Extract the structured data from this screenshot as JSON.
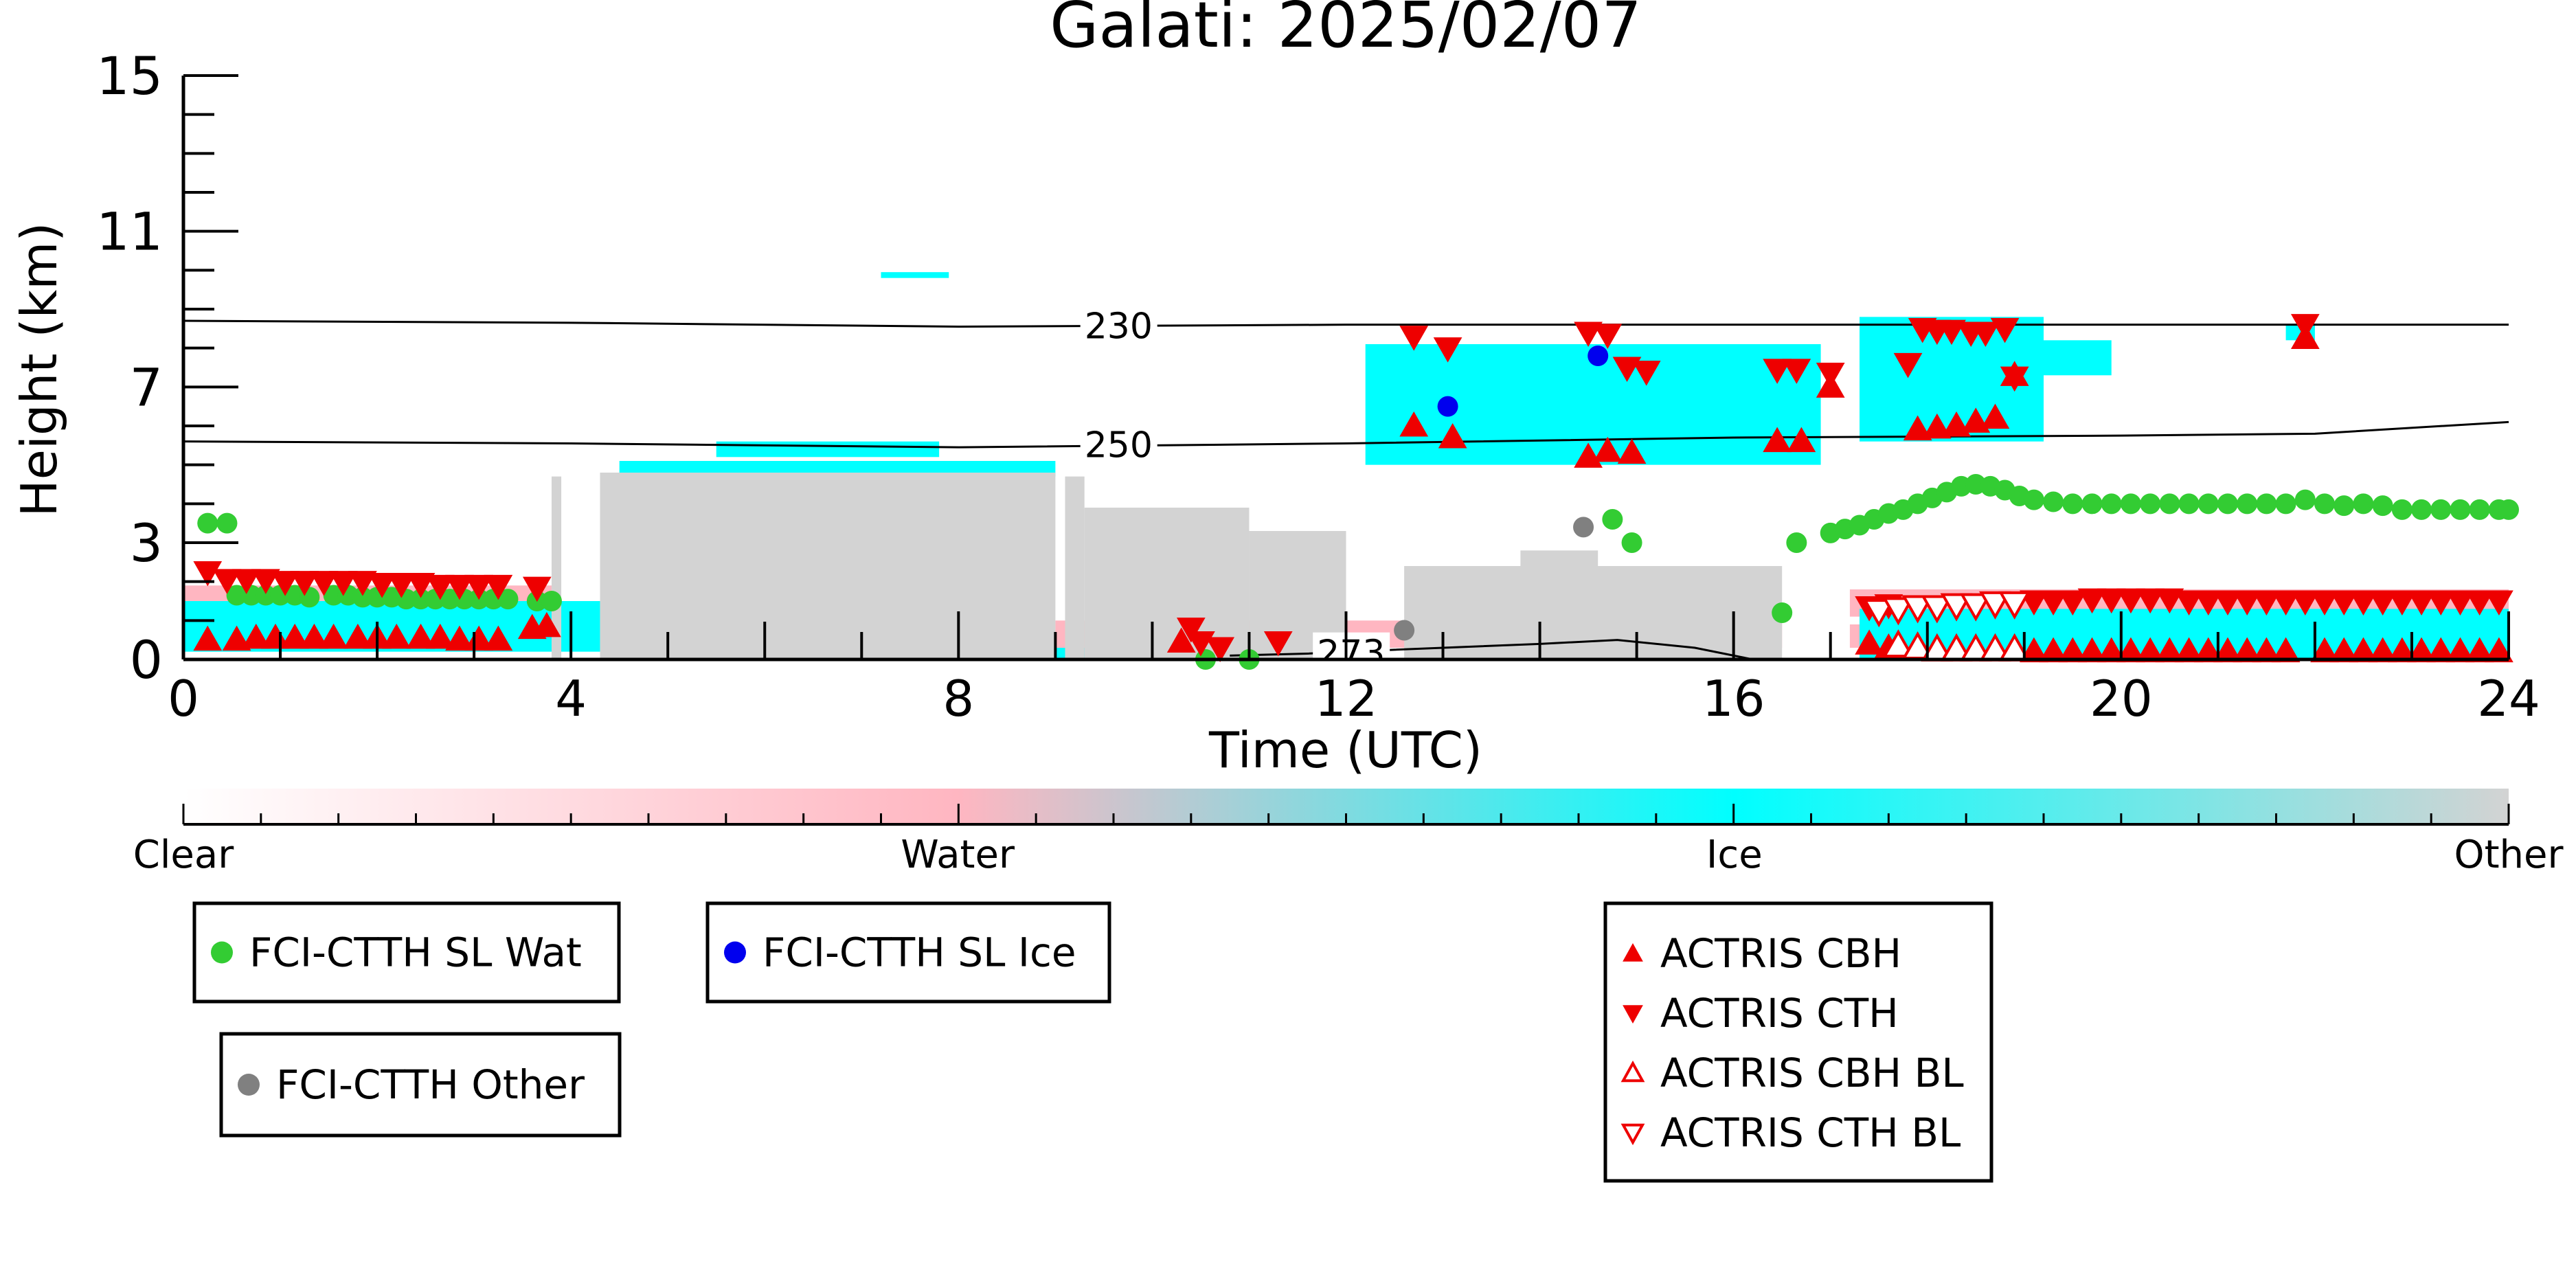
{
  "chart_data": {
    "type": "scatter",
    "title": "Galati: 2025/02/07",
    "xlabel": "Time (UTC)",
    "ylabel": "Height (km)",
    "xlim": [
      0,
      24
    ],
    "ylim": [
      0,
      15
    ],
    "x_ticks": [
      "0",
      "4",
      "8",
      "12",
      "16",
      "20",
      "24"
    ],
    "x_tick_values": [
      0,
      4,
      8,
      12,
      16,
      20,
      24
    ],
    "y_ticks": [
      "0",
      "3",
      "7",
      "11",
      "15"
    ],
    "y_tick_values": [
      0,
      3,
      7,
      11,
      15
    ],
    "colorbar": {
      "labels": [
        "Clear",
        "Water",
        "Ice",
        "Other"
      ],
      "stops": [
        {
          "pos": 0.0,
          "color": "#ffffff"
        },
        {
          "pos": 0.333,
          "color": "#ffb6c1"
        },
        {
          "pos": 0.667,
          "color": "#00ffff"
        },
        {
          "pos": 1.0,
          "color": "#d3d3d3"
        }
      ]
    },
    "contours": [
      {
        "label": "230",
        "points": [
          [
            0,
            8.7
          ],
          [
            4,
            8.65
          ],
          [
            8,
            8.55
          ],
          [
            12,
            8.6
          ],
          [
            16,
            8.6
          ],
          [
            20,
            8.6
          ],
          [
            24,
            8.6
          ]
        ]
      },
      {
        "label": "250",
        "points": [
          [
            0,
            5.6
          ],
          [
            4,
            5.55
          ],
          [
            8,
            5.45
          ],
          [
            12,
            5.55
          ],
          [
            16,
            5.7
          ],
          [
            20,
            5.75
          ],
          [
            22,
            5.8
          ],
          [
            24,
            6.1
          ]
        ]
      },
      {
        "label": "273",
        "points": [
          [
            10.8,
            0.1
          ],
          [
            11.6,
            0.15
          ],
          [
            12.5,
            0.25
          ],
          [
            14,
            0.4
          ],
          [
            14.8,
            0.5
          ],
          [
            15.6,
            0.3
          ],
          [
            16.2,
            0
          ]
        ]
      }
    ],
    "contour_label_positions": [
      [
        9.3,
        8.6
      ],
      [
        9.3,
        5.55
      ],
      [
        11.7,
        0.2
      ]
    ],
    "cloud_mask_regions": [
      {
        "class": "Water",
        "color": "#ffb6c1",
        "rects": [
          [
            0,
            1.0,
            3.8,
            1.9
          ],
          [
            9.0,
            0.3,
            16.5,
            1.0
          ],
          [
            17.2,
            1.1,
            24,
            1.8
          ],
          [
            17.2,
            0.3,
            24,
            0.9
          ]
        ]
      },
      {
        "class": "Ice",
        "color": "#00ffff",
        "rects": [
          [
            0,
            0.2,
            4.3,
            1.5
          ],
          [
            5.5,
            5.2,
            7.8,
            5.6
          ],
          [
            4.5,
            4.7,
            9.0,
            5.1
          ],
          [
            7.2,
            9.8,
            7.9,
            9.95
          ],
          [
            12.2,
            5.0,
            16.9,
            8.1
          ],
          [
            17.3,
            5.6,
            19.2,
            8.8
          ],
          [
            19.2,
            7.3,
            19.9,
            8.2
          ],
          [
            21.7,
            8.2,
            22.0,
            8.6
          ],
          [
            9.0,
            0,
            11.0,
            0.3
          ],
          [
            17.3,
            0,
            24,
            1.3
          ]
        ]
      },
      {
        "class": "Other",
        "color": "#d3d3d3",
        "rects": [
          [
            4.3,
            0,
            9.0,
            4.8
          ],
          [
            3.8,
            0,
            3.9,
            4.7
          ],
          [
            9.1,
            0,
            9.3,
            4.7
          ],
          [
            9.3,
            0,
            11.0,
            3.9
          ],
          [
            11.0,
            0,
            12.0,
            3.3
          ],
          [
            12.6,
            0,
            16.5,
            2.4
          ],
          [
            13.8,
            0,
            14.6,
            2.8
          ]
        ]
      }
    ],
    "series": [
      {
        "name": "FCI-CTTH SL Wat",
        "marker": "circle",
        "color": "#33cc33",
        "points": [
          [
            0.25,
            3.5
          ],
          [
            0.45,
            3.5
          ],
          [
            0.55,
            1.65
          ],
          [
            0.7,
            1.65
          ],
          [
            0.85,
            1.65
          ],
          [
            1.0,
            1.65
          ],
          [
            1.15,
            1.65
          ],
          [
            1.3,
            1.6
          ],
          [
            1.55,
            1.65
          ],
          [
            1.7,
            1.65
          ],
          [
            1.85,
            1.6
          ],
          [
            2.0,
            1.6
          ],
          [
            2.15,
            1.6
          ],
          [
            2.3,
            1.55
          ],
          [
            2.45,
            1.55
          ],
          [
            2.6,
            1.55
          ],
          [
            2.75,
            1.55
          ],
          [
            2.9,
            1.55
          ],
          [
            3.05,
            1.55
          ],
          [
            3.2,
            1.55
          ],
          [
            3.35,
            1.55
          ],
          [
            3.65,
            1.5
          ],
          [
            3.8,
            1.5
          ],
          [
            10.55,
            0
          ],
          [
            11.0,
            0
          ],
          [
            14.75,
            3.6
          ],
          [
            14.95,
            3.0
          ],
          [
            16.5,
            1.2
          ],
          [
            16.65,
            3.0
          ],
          [
            17.0,
            3.25
          ],
          [
            17.15,
            3.35
          ],
          [
            17.3,
            3.45
          ],
          [
            17.45,
            3.6
          ],
          [
            17.6,
            3.75
          ],
          [
            17.75,
            3.85
          ],
          [
            17.9,
            4.0
          ],
          [
            18.05,
            4.15
          ],
          [
            18.2,
            4.3
          ],
          [
            18.35,
            4.45
          ],
          [
            18.5,
            4.5
          ],
          [
            18.65,
            4.45
          ],
          [
            18.8,
            4.35
          ],
          [
            18.95,
            4.2
          ],
          [
            19.1,
            4.1
          ],
          [
            19.3,
            4.05
          ],
          [
            19.5,
            4.0
          ],
          [
            19.7,
            4.0
          ],
          [
            19.9,
            4.0
          ],
          [
            20.1,
            4.0
          ],
          [
            20.3,
            4.0
          ],
          [
            20.5,
            4.0
          ],
          [
            20.7,
            4.0
          ],
          [
            20.9,
            4.0
          ],
          [
            21.1,
            4.0
          ],
          [
            21.3,
            4.0
          ],
          [
            21.5,
            4.0
          ],
          [
            21.7,
            4.0
          ],
          [
            21.9,
            4.1
          ],
          [
            22.1,
            4.0
          ],
          [
            22.3,
            3.95
          ],
          [
            22.5,
            4.0
          ],
          [
            22.7,
            3.95
          ],
          [
            22.9,
            3.85
          ],
          [
            23.1,
            3.85
          ],
          [
            23.3,
            3.85
          ],
          [
            23.5,
            3.85
          ],
          [
            23.7,
            3.85
          ],
          [
            23.9,
            3.85
          ],
          [
            24,
            3.85
          ]
        ]
      },
      {
        "name": "FCI-CTTH SL Ice",
        "marker": "circle",
        "color": "#0000ee",
        "points": [
          [
            13.05,
            6.5
          ],
          [
            14.6,
            7.8
          ]
        ]
      },
      {
        "name": "FCI-CTTH Other",
        "marker": "circle",
        "color": "#808080",
        "points": [
          [
            12.6,
            0.75
          ],
          [
            14.45,
            3.4
          ]
        ]
      },
      {
        "name": "ACTRIS CBH",
        "marker": "triangle-up",
        "color": "#ee0000",
        "filled": true,
        "points": [
          [
            0.25,
            0.5
          ],
          [
            0.55,
            0.5
          ],
          [
            0.75,
            0.55
          ],
          [
            0.95,
            0.55
          ],
          [
            1.15,
            0.55
          ],
          [
            1.35,
            0.55
          ],
          [
            1.55,
            0.55
          ],
          [
            1.8,
            0.55
          ],
          [
            2.0,
            0.55
          ],
          [
            2.2,
            0.55
          ],
          [
            2.45,
            0.55
          ],
          [
            2.65,
            0.55
          ],
          [
            2.85,
            0.5
          ],
          [
            3.05,
            0.5
          ],
          [
            3.25,
            0.5
          ],
          [
            3.6,
            0.8
          ],
          [
            3.75,
            0.85
          ],
          [
            10.3,
            0.45
          ],
          [
            12.7,
            6.0
          ],
          [
            13.1,
            5.7
          ],
          [
            14.5,
            5.2
          ],
          [
            14.7,
            5.35
          ],
          [
            14.95,
            5.3
          ],
          [
            16.45,
            5.6
          ],
          [
            16.7,
            5.6
          ],
          [
            17.0,
            7.0
          ],
          [
            17.4,
            0.4
          ],
          [
            17.6,
            0.3
          ],
          [
            17.9,
            5.9
          ],
          [
            18.1,
            5.95
          ],
          [
            18.3,
            6.0
          ],
          [
            18.5,
            6.1
          ],
          [
            18.7,
            6.2
          ],
          [
            18.9,
            7.3
          ],
          [
            19.1,
            0.2
          ],
          [
            19.3,
            0.2
          ],
          [
            19.5,
            0.2
          ],
          [
            19.7,
            0.2
          ],
          [
            19.9,
            0.2
          ],
          [
            20.1,
            0.2
          ],
          [
            20.3,
            0.2
          ],
          [
            20.5,
            0.2
          ],
          [
            20.7,
            0.2
          ],
          [
            20.9,
            0.2
          ],
          [
            21.1,
            0.2
          ],
          [
            21.3,
            0.2
          ],
          [
            21.5,
            0.2
          ],
          [
            21.7,
            0.2
          ],
          [
            21.9,
            8.25
          ],
          [
            22.1,
            0.2
          ],
          [
            22.3,
            0.2
          ],
          [
            22.5,
            0.2
          ],
          [
            22.7,
            0.2
          ],
          [
            22.9,
            0.2
          ],
          [
            23.1,
            0.2
          ],
          [
            23.3,
            0.2
          ],
          [
            23.5,
            0.2
          ],
          [
            23.7,
            0.2
          ],
          [
            23.9,
            0.2
          ]
        ]
      },
      {
        "name": "ACTRIS CTH",
        "marker": "triangle-down",
        "color": "#ee0000",
        "filled": true,
        "points": [
          [
            0.25,
            2.25
          ],
          [
            0.45,
            2.05
          ],
          [
            0.65,
            2.05
          ],
          [
            0.85,
            2.05
          ],
          [
            1.05,
            2.0
          ],
          [
            1.25,
            2.0
          ],
          [
            1.45,
            2.0
          ],
          [
            1.65,
            2.0
          ],
          [
            1.85,
            2.0
          ],
          [
            2.05,
            1.95
          ],
          [
            2.25,
            1.95
          ],
          [
            2.45,
            1.95
          ],
          [
            2.65,
            1.9
          ],
          [
            2.85,
            1.9
          ],
          [
            3.05,
            1.9
          ],
          [
            3.25,
            1.9
          ],
          [
            3.65,
            1.85
          ],
          [
            10.4,
            0.8
          ],
          [
            10.5,
            0.45
          ],
          [
            10.7,
            0.3
          ],
          [
            11.3,
            0.45
          ],
          [
            12.7,
            8.3
          ],
          [
            13.05,
            8.0
          ],
          [
            14.5,
            8.4
          ],
          [
            14.7,
            8.35
          ],
          [
            14.9,
            7.5
          ],
          [
            15.1,
            7.4
          ],
          [
            16.45,
            7.45
          ],
          [
            16.65,
            7.45
          ],
          [
            17.0,
            7.35
          ],
          [
            17.8,
            7.6
          ],
          [
            17.95,
            8.5
          ],
          [
            18.1,
            8.45
          ],
          [
            18.25,
            8.45
          ],
          [
            18.45,
            8.4
          ],
          [
            18.6,
            8.4
          ],
          [
            18.8,
            8.5
          ],
          [
            18.9,
            7.25
          ],
          [
            21.9,
            8.6
          ],
          [
            17.4,
            1.35
          ],
          [
            17.6,
            1.4
          ],
          [
            19.1,
            1.5
          ],
          [
            19.3,
            1.5
          ],
          [
            19.5,
            1.5
          ],
          [
            19.7,
            1.55
          ],
          [
            19.9,
            1.55
          ],
          [
            20.1,
            1.55
          ],
          [
            20.3,
            1.55
          ],
          [
            20.5,
            1.55
          ],
          [
            20.7,
            1.5
          ],
          [
            20.9,
            1.5
          ],
          [
            21.1,
            1.5
          ],
          [
            21.3,
            1.5
          ],
          [
            21.5,
            1.5
          ],
          [
            21.7,
            1.5
          ],
          [
            21.9,
            1.5
          ],
          [
            22.1,
            1.5
          ],
          [
            22.3,
            1.5
          ],
          [
            22.5,
            1.5
          ],
          [
            22.7,
            1.5
          ],
          [
            22.9,
            1.5
          ],
          [
            23.1,
            1.5
          ],
          [
            23.3,
            1.5
          ],
          [
            23.5,
            1.5
          ],
          [
            23.7,
            1.5
          ],
          [
            23.9,
            1.5
          ]
        ]
      },
      {
        "name": "ACTRIS CBH BL",
        "marker": "triangle-up",
        "color": "#ee0000",
        "filled": false,
        "points": [
          [
            17.7,
            0.35
          ],
          [
            17.9,
            0.3
          ],
          [
            18.1,
            0.25
          ],
          [
            18.3,
            0.25
          ],
          [
            18.5,
            0.25
          ],
          [
            18.7,
            0.25
          ],
          [
            18.9,
            0.25
          ]
        ]
      },
      {
        "name": "ACTRIS CTH BL",
        "marker": "triangle-down",
        "color": "#ee0000",
        "filled": false,
        "points": [
          [
            17.5,
            1.25
          ],
          [
            17.7,
            1.3
          ],
          [
            17.9,
            1.35
          ],
          [
            18.1,
            1.35
          ],
          [
            18.3,
            1.4
          ],
          [
            18.5,
            1.4
          ],
          [
            18.7,
            1.45
          ],
          [
            18.9,
            1.45
          ]
        ]
      }
    ],
    "legend_groups": [
      [
        "FCI-CTTH SL Wat"
      ],
      [
        "FCI-CTTH SL Ice"
      ],
      [
        "FCI-CTTH Other"
      ],
      [
        "ACTRIS CBH",
        "ACTRIS CTH",
        "ACTRIS CBH BL",
        "ACTRIS CTH BL"
      ]
    ]
  }
}
